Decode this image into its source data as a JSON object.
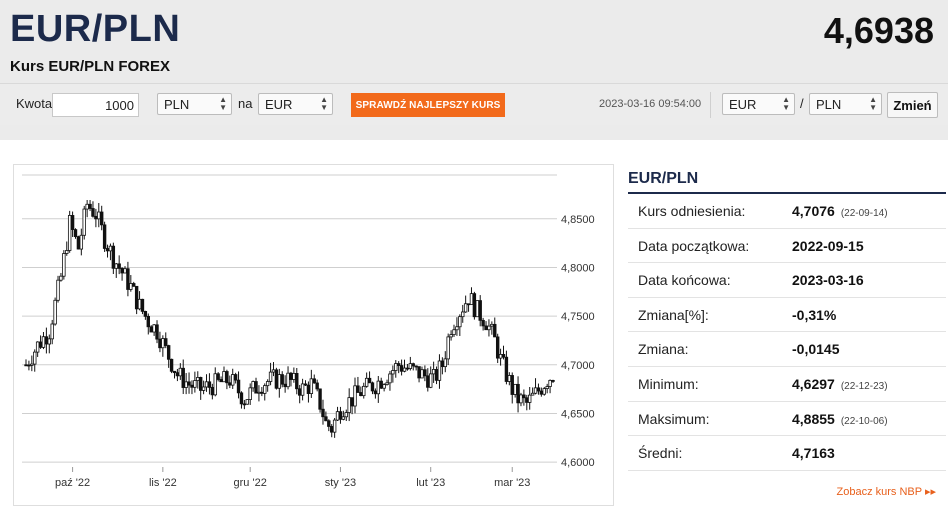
{
  "header": {
    "pair": "EUR/PLN",
    "rate": "4,6938",
    "subtitle": "Kurs EUR/PLN FOREX"
  },
  "converter": {
    "amount_label": "Kwota",
    "amount_value": "1000",
    "from_currency": "PLN",
    "na_label": "na",
    "to_currency": "EUR",
    "best_rate_button": "SPRAWDŹ NAJLEPSZY KURS",
    "timestamp": "2023-03-16 09:54:00",
    "pair_base": "EUR",
    "slash": "/",
    "pair_quote": "PLN",
    "change_button": "Zmień"
  },
  "stats": {
    "title": "EUR/PLN",
    "rows": [
      {
        "label": "Kurs odniesienia:",
        "value": "4,7076",
        "date": "(22-09-14)"
      },
      {
        "label": "Data początkowa:",
        "value": "2022-09-15",
        "date": ""
      },
      {
        "label": "Data końcowa:",
        "value": "2023-03-16",
        "date": ""
      },
      {
        "label": "Zmiana[%]:",
        "value": "-0,31%",
        "date": ""
      },
      {
        "label": "Zmiana:",
        "value": "-0,0145",
        "date": ""
      },
      {
        "label": "Minimum:",
        "value": "4,6297",
        "date": "(22-12-23)"
      },
      {
        "label": "Maksimum:",
        "value": "4,8855",
        "date": "(22-10-06)"
      },
      {
        "label": "Średni:",
        "value": "4,7163",
        "date": ""
      }
    ],
    "nbp_link": "Zobacz kurs NBP ▸▸"
  },
  "colors": {
    "accent_orange": "#f26a1b",
    "title_navy": "#1c2a4b",
    "candle": "#111111"
  },
  "chart_data": {
    "type": "candlestick",
    "ylim": [
      4.595,
      4.895
    ],
    "y_ticks": [
      "4,6000",
      "4,6500",
      "4,7000",
      "4,7500",
      "4,8000",
      "4,8500"
    ],
    "x_ticks": [
      "paź '22",
      "lis '22",
      "gru '22",
      "sty '23",
      "lut '23",
      "mar '23"
    ],
    "x_tick_days": [
      16,
      47,
      77,
      108,
      139,
      167
    ],
    "anchors": [
      [
        0,
        4.7
      ],
      [
        4,
        4.72
      ],
      [
        8,
        4.735
      ],
      [
        12,
        4.79
      ],
      [
        15,
        4.845
      ],
      [
        18,
        4.82
      ],
      [
        21,
        4.865
      ],
      [
        24,
        4.855
      ],
      [
        27,
        4.83
      ],
      [
        30,
        4.81
      ],
      [
        33,
        4.795
      ],
      [
        36,
        4.78
      ],
      [
        39,
        4.76
      ],
      [
        42,
        4.745
      ],
      [
        45,
        4.735
      ],
      [
        48,
        4.715
      ],
      [
        52,
        4.69
      ],
      [
        56,
        4.68
      ],
      [
        60,
        4.675
      ],
      [
        65,
        4.68
      ],
      [
        70,
        4.685
      ],
      [
        75,
        4.665
      ],
      [
        80,
        4.68
      ],
      [
        85,
        4.685
      ],
      [
        90,
        4.685
      ],
      [
        95,
        4.675
      ],
      [
        98,
        4.68
      ],
      [
        101,
        4.66
      ],
      [
        103,
        4.64
      ],
      [
        105,
        4.635
      ],
      [
        108,
        4.655
      ],
      [
        112,
        4.665
      ],
      [
        116,
        4.675
      ],
      [
        120,
        4.68
      ],
      [
        124,
        4.69
      ],
      [
        128,
        4.7
      ],
      [
        132,
        4.695
      ],
      [
        136,
        4.69
      ],
      [
        140,
        4.685
      ],
      [
        143,
        4.7
      ],
      [
        146,
        4.74
      ],
      [
        149,
        4.755
      ],
      [
        152,
        4.77
      ],
      [
        155,
        4.755
      ],
      [
        158,
        4.745
      ],
      [
        161,
        4.725
      ],
      [
        163,
        4.705
      ],
      [
        165,
        4.69
      ],
      [
        167,
        4.675
      ],
      [
        169,
        4.665
      ],
      [
        172,
        4.66
      ],
      [
        175,
        4.67
      ],
      [
        179,
        4.685
      ],
      [
        181,
        4.69
      ]
    ]
  }
}
